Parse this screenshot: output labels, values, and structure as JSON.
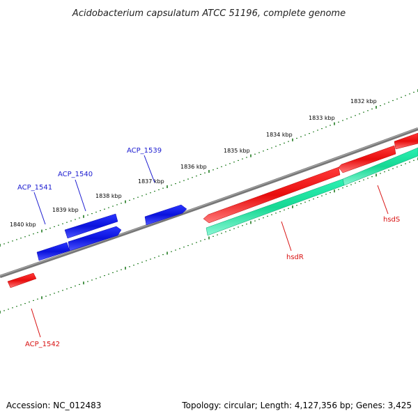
{
  "title": "Acidobacterium capsulatum ATCC 51196, complete genome",
  "footer": {
    "accession": "Accession: NC_012483",
    "summary": "Topology: circular; Length: 4,127,356 bp; Genes: 3,425"
  },
  "colors": {
    "backbone": "#7a7a7a",
    "ticks": "#1e7a1e",
    "gene_blue": "#0a12dc",
    "gene_red": "#ee1111",
    "gene_green": "#22e8a6",
    "label_blue": "#1a1ad0",
    "label_red": "#d81010"
  },
  "scale": {
    "unit": "kbp",
    "labels": [
      "1832 kbp",
      "1833 kbp",
      "1834 kbp",
      "1835 kbp",
      "1836 kbp",
      "1837 kbp",
      "1838 kbp",
      "1839 kbp",
      "1840 kbp"
    ]
  },
  "genes": [
    {
      "name": "ACP_1539",
      "strand": "+",
      "color": "blue",
      "labeled": true
    },
    {
      "name": "ACP_1540",
      "strand": "+",
      "color": "blue",
      "labeled": true
    },
    {
      "name": "ACP_1540_b",
      "strand": "+",
      "color": "blue",
      "labeled": false
    },
    {
      "name": "ACP_1541",
      "strand": "+",
      "color": "blue",
      "labeled": true
    },
    {
      "name": "hsdS",
      "strand": "+",
      "color": "red",
      "labeled": true
    },
    {
      "name": "hsdR",
      "strand": "+",
      "color": "red",
      "labeled": true
    },
    {
      "name": "hsdR_cds",
      "strand": "+",
      "color": "green",
      "labeled": false
    },
    {
      "name": "hsdS_cds",
      "strand": "+",
      "color": "green",
      "labeled": false
    },
    {
      "name": "ACP_1542",
      "strand": "-",
      "color": "red",
      "labeled": true
    }
  ],
  "gene_labels": {
    "acp1539": "ACP_1539",
    "acp1540": "ACP_1540",
    "acp1541": "ACP_1541",
    "acp1542": "ACP_1542",
    "hsdS": "hsdS",
    "hsdR": "hsdR"
  }
}
